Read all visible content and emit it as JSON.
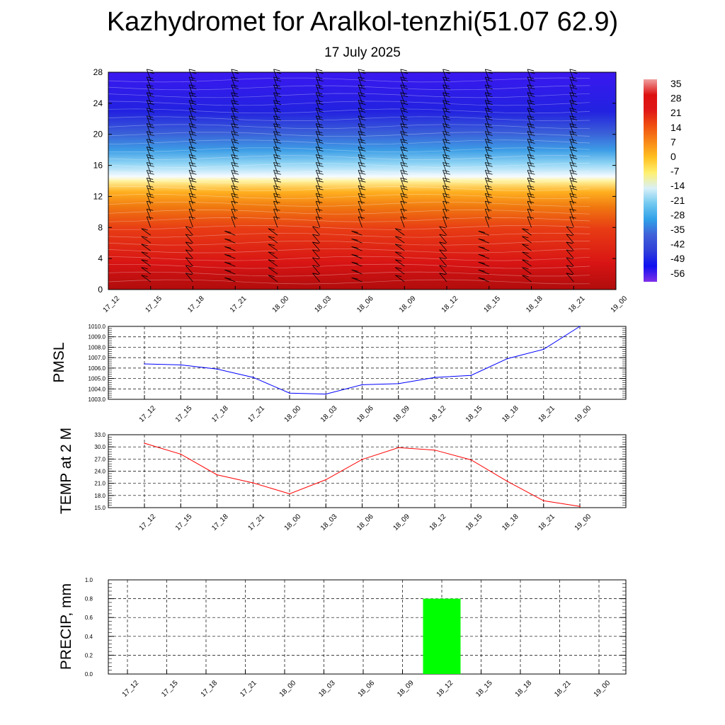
{
  "header": {
    "title": "Kazhydromet for Aralkol-tenzhi(51.07 62.9)",
    "subtitle": "17 July 2025"
  },
  "colors": {
    "pmsl_line": "#0000ff",
    "temp_line": "#ff0000",
    "precip_bar": "#00ff00",
    "grid": "#000000"
  },
  "colorbar": {
    "labels": [
      "35",
      "28",
      "21",
      "14",
      "7",
      "0",
      "-7",
      "-14",
      "-21",
      "-28",
      "-35",
      "-42",
      "-49",
      "-56"
    ],
    "stops": [
      "#f0a0a0",
      "#dd1010",
      "#e01818",
      "#f05010",
      "#f88818",
      "#ffc020",
      "#fff070",
      "#d8f0f8",
      "#70c8f0",
      "#30a0e8",
      "#4060d8",
      "#3040d8",
      "#1010f0",
      "#8030e8"
    ]
  },
  "chart_data": [
    {
      "type": "heatmap",
      "title": "",
      "xlabel": "",
      "ylabel": "",
      "x": [
        "17_12",
        "17_15",
        "17_18",
        "17_21",
        "18_00",
        "18_03",
        "18_06",
        "18_09",
        "18_12",
        "18_15",
        "18_18",
        "18_21",
        "19_00"
      ],
      "yticks": [
        0,
        4,
        8,
        12,
        16,
        20,
        24,
        28
      ],
      "ylim": [
        0,
        28
      ],
      "z_range": [
        -56,
        35
      ],
      "wind_barbs": true
    },
    {
      "type": "line",
      "ylabel": "PMSL",
      "x": [
        "17_12",
        "17_15",
        "17_18",
        "17_21",
        "18_00",
        "18_03",
        "18_06",
        "18_09",
        "18_12",
        "18_15",
        "18_18",
        "18_21",
        "19_00"
      ],
      "values": [
        1006.4,
        1006.3,
        1005.9,
        1005.1,
        1003.6,
        1003.5,
        1004.4,
        1004.5,
        1005.1,
        1005.3,
        1006.9,
        1007.8,
        1010.0
      ],
      "ylim": [
        1003.0,
        1010.0
      ],
      "yticks": [
        "1003.0",
        "1004.0",
        "1005.0",
        "1006.0",
        "1007.0",
        "1008.0",
        "1009.0",
        "1010.0"
      ],
      "grid": true
    },
    {
      "type": "line",
      "ylabel": "TEMP at 2 M",
      "x": [
        "17_12",
        "17_15",
        "17_18",
        "17_21",
        "18_00",
        "18_03",
        "18_06",
        "18_09",
        "18_12",
        "18_15",
        "18_18",
        "18_21",
        "19_00"
      ],
      "values": [
        30.9,
        28.2,
        23.1,
        21.1,
        18.4,
        21.9,
        26.9,
        29.8,
        29.2,
        26.8,
        21.5,
        16.7,
        15.3
      ],
      "ylim": [
        15.0,
        33.0
      ],
      "yticks": [
        "15.0",
        "18.0",
        "21.0",
        "24.0",
        "27.0",
        "30.0",
        "33.0"
      ],
      "grid": true
    },
    {
      "type": "bar",
      "ylabel": "PRECIP, mm",
      "categories": [
        "17_12",
        "17_15",
        "17_18",
        "17_21",
        "18_00",
        "18_03",
        "18_06",
        "18_09",
        "18_12",
        "18_15",
        "18_18",
        "18_21",
        "19_00"
      ],
      "values": [
        0,
        0,
        0,
        0,
        0,
        0,
        0,
        0,
        0.8,
        0,
        0,
        0,
        0
      ],
      "ylim": [
        0.0,
        1.0
      ],
      "yticks": [
        "0.0",
        "0.2",
        "0.4",
        "0.6",
        "0.8",
        "1.0"
      ],
      "grid": true
    }
  ]
}
